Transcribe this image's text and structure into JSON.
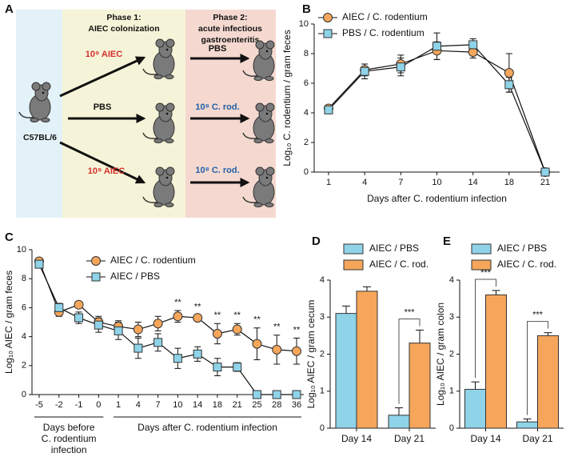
{
  "panel_a": {
    "label": "A",
    "phase1": [
      "Phase 1:",
      "AIEC colonization"
    ],
    "phase2": [
      "Phase 2:",
      "acute infectious",
      "gastroenteritis"
    ],
    "strain": "C57BL/6",
    "phase1_treatments": [
      "10⁹ AIEC",
      "PBS",
      "10⁹ AIEC"
    ],
    "phase2_treatments": [
      "PBS",
      "10⁸ C. rod.",
      "10⁸ C. rod."
    ]
  },
  "chart_data": [
    {
      "type": "line",
      "label": "B",
      "ylabel": "Log₁₀ C. rodentium / gram feces",
      "xlabel": "Days after C. rodentium infection",
      "categories": [
        "1",
        "4",
        "7",
        "10",
        "14",
        "18",
        "21"
      ],
      "ylim": [
        0,
        10
      ],
      "yticks": [
        0,
        2,
        4,
        6,
        8,
        10
      ],
      "series": [
        {
          "name": "AIEC / C. rodentium",
          "color": "#f5a65b",
          "marker": "circle",
          "values": [
            4.3,
            6.9,
            7.3,
            8.2,
            8.1,
            6.7,
            0
          ],
          "errors": [
            0.15,
            0.4,
            0.6,
            0.6,
            0.4,
            1.3,
            0
          ]
        },
        {
          "name": "PBS / C. rodentium",
          "color": "#8fd3e8",
          "marker": "square",
          "values": [
            4.2,
            6.8,
            7.1,
            8.5,
            8.6,
            5.9,
            0
          ],
          "errors": [
            0.15,
            0.5,
            0.6,
            0.9,
            0.4,
            0.5,
            0
          ]
        }
      ]
    },
    {
      "type": "line",
      "label": "C",
      "ylabel": "Log₁₀ AIEC / gram feces",
      "categories": [
        "-5",
        "-2",
        "-1",
        "0",
        "1",
        "4",
        "7",
        "10",
        "14",
        "18",
        "21",
        "25",
        "28",
        "36"
      ],
      "ylim": [
        0,
        10
      ],
      "yticks": [
        0,
        2,
        4,
        6,
        8,
        10
      ],
      "xlabel_groups": [
        {
          "text": [
            "Days before",
            "C. rodentium",
            "infection"
          ],
          "from": "-5",
          "to": "0"
        },
        {
          "text": [
            "Days after C. rodentium infection"
          ],
          "from": "1",
          "to": "36"
        }
      ],
      "series": [
        {
          "name": "AIEC / C. rodentium",
          "color": "#f5a65b",
          "marker": "circle",
          "values": [
            9.2,
            5.7,
            6.2,
            5.0,
            4.7,
            4.5,
            4.9,
            5.4,
            5.3,
            4.2,
            4.5,
            3.5,
            3.1,
            3.0
          ],
          "errors": [
            0.2,
            0.3,
            0.2,
            0.4,
            0.4,
            0.5,
            0.5,
            0.4,
            0.2,
            0.7,
            0.4,
            1.1,
            1.0,
            0.9
          ]
        },
        {
          "name": "AIEC / PBS",
          "color": "#8fd3e8",
          "marker": "square",
          "values": [
            9.0,
            6.0,
            5.3,
            4.8,
            4.4,
            3.2,
            3.6,
            2.5,
            2.8,
            1.9,
            1.9,
            0,
            0,
            0
          ],
          "errors": [
            0.2,
            0.3,
            0.4,
            0.5,
            0.6,
            0.7,
            0.6,
            0.7,
            0.5,
            0.6,
            0.3,
            0,
            0,
            0
          ]
        }
      ],
      "annotations": [
        {
          "category": "10",
          "text": "**"
        },
        {
          "category": "14",
          "text": "**"
        },
        {
          "category": "18",
          "text": "**"
        },
        {
          "category": "21",
          "text": "**"
        },
        {
          "category": "25",
          "text": "**"
        },
        {
          "category": "28",
          "text": "**"
        },
        {
          "category": "36",
          "text": "**"
        }
      ]
    },
    {
      "type": "bar",
      "label": "D",
      "ylabel": "Log₁₀ AIEC / gram cecum",
      "categories": [
        "Day 14",
        "Day 21"
      ],
      "ylim": [
        0,
        4
      ],
      "yticks": [
        0,
        1,
        2,
        3,
        4
      ],
      "series": [
        {
          "name": "AIEC / PBS",
          "color": "#8fd3e8",
          "values": [
            3.1,
            0.35
          ],
          "errors": [
            0.2,
            0.2
          ]
        },
        {
          "name": "AIEC / C. rod.",
          "color": "#f5a65b",
          "values": [
            3.7,
            2.3
          ],
          "errors": [
            0.12,
            0.35
          ]
        }
      ],
      "annotations": [
        {
          "category": "Day 21",
          "text": "***"
        }
      ]
    },
    {
      "type": "bar",
      "label": "E",
      "ylabel": "Log₁₀ AIEC / gram  colon",
      "categories": [
        "Day 14",
        "Day 21"
      ],
      "ylim": [
        0,
        4
      ],
      "yticks": [
        0,
        1,
        2,
        3,
        4
      ],
      "series": [
        {
          "name": "AIEC / PBS",
          "color": "#8fd3e8",
          "values": [
            1.05,
            0.17
          ],
          "errors": [
            0.2,
            0.08
          ]
        },
        {
          "name": "AIEC / C. rod.",
          "color": "#f5a65b",
          "values": [
            3.6,
            2.5
          ],
          "errors": [
            0.12,
            0.08
          ]
        }
      ],
      "annotations": [
        {
          "category": "Day 14",
          "text": "***"
        },
        {
          "category": "Day 21",
          "text": "***"
        }
      ]
    }
  ]
}
